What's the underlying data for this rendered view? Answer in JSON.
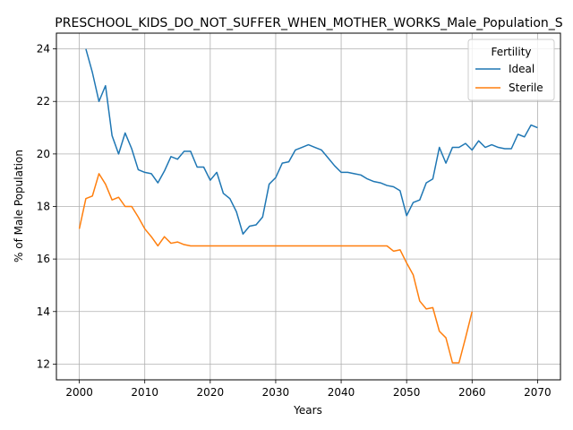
{
  "chart_data": {
    "type": "line",
    "title": "PRESCHOOL_KIDS_DO_NOT_SUFFER_WHEN_MOTHER_WORKS_Male_Population_S",
    "xlabel": "Years",
    "ylabel": "% of Male Population",
    "xlim": [
      1996.5,
      2073.5
    ],
    "ylim": [
      11.4,
      24.6
    ],
    "x_ticks": [
      2000,
      2010,
      2020,
      2030,
      2040,
      2050,
      2060,
      2070
    ],
    "y_ticks": [
      12,
      14,
      16,
      18,
      20,
      22,
      24
    ],
    "grid": true,
    "legend": {
      "title": "Fertility",
      "placement": "top-right"
    },
    "series": [
      {
        "name": "Ideal",
        "color": "#1f77b4",
        "points": [
          [
            2001,
            24.0
          ],
          [
            2002,
            23.1
          ],
          [
            2003,
            22.0
          ],
          [
            2004,
            22.6
          ],
          [
            2005,
            20.7
          ],
          [
            2006,
            20.0
          ],
          [
            2007,
            20.8
          ],
          [
            2008,
            20.2
          ],
          [
            2009,
            19.4
          ],
          [
            2010,
            19.3
          ],
          [
            2011,
            19.25
          ],
          [
            2012,
            18.9
          ],
          [
            2013,
            19.35
          ],
          [
            2014,
            19.9
          ],
          [
            2015,
            19.8
          ],
          [
            2016,
            20.1
          ],
          [
            2017,
            20.1
          ],
          [
            2018,
            19.5
          ],
          [
            2019,
            19.5
          ],
          [
            2020,
            19.0
          ],
          [
            2021,
            19.3
          ],
          [
            2022,
            18.5
          ],
          [
            2023,
            18.3
          ],
          [
            2024,
            17.8
          ],
          [
            2025,
            16.95
          ],
          [
            2026,
            17.25
          ],
          [
            2027,
            17.3
          ],
          [
            2028,
            17.6
          ],
          [
            2029,
            18.85
          ],
          [
            2030,
            19.1
          ],
          [
            2031,
            19.65
          ],
          [
            2032,
            19.7
          ],
          [
            2033,
            20.15
          ],
          [
            2034,
            20.25
          ],
          [
            2035,
            20.35
          ],
          [
            2036,
            20.25
          ],
          [
            2037,
            20.15
          ],
          [
            2038,
            19.85
          ],
          [
            2039,
            19.55
          ],
          [
            2040,
            19.3
          ],
          [
            2041,
            19.3
          ],
          [
            2042,
            19.25
          ],
          [
            2043,
            19.2
          ],
          [
            2044,
            19.05
          ],
          [
            2045,
            18.95
          ],
          [
            2046,
            18.9
          ],
          [
            2047,
            18.8
          ],
          [
            2048,
            18.75
          ],
          [
            2049,
            18.6
          ],
          [
            2050,
            17.65
          ],
          [
            2051,
            18.15
          ],
          [
            2052,
            18.25
          ],
          [
            2053,
            18.9
          ],
          [
            2054,
            19.05
          ],
          [
            2055,
            20.25
          ],
          [
            2056,
            19.65
          ],
          [
            2057,
            20.25
          ],
          [
            2058,
            20.25
          ],
          [
            2059,
            20.4
          ],
          [
            2060,
            20.15
          ],
          [
            2061,
            20.5
          ],
          [
            2062,
            20.25
          ],
          [
            2063,
            20.35
          ],
          [
            2064,
            20.25
          ],
          [
            2065,
            20.2
          ],
          [
            2066,
            20.2
          ],
          [
            2067,
            20.75
          ],
          [
            2068,
            20.65
          ],
          [
            2069,
            21.1
          ],
          [
            2070,
            21.0
          ]
        ]
      },
      {
        "name": "Sterile",
        "color": "#ff7f0e",
        "points": [
          [
            2000,
            17.15
          ],
          [
            2001,
            18.3
          ],
          [
            2002,
            18.4
          ],
          [
            2003,
            19.25
          ],
          [
            2004,
            18.85
          ],
          [
            2005,
            18.25
          ],
          [
            2006,
            18.35
          ],
          [
            2007,
            18.0
          ],
          [
            2008,
            18.0
          ],
          [
            2009,
            17.6
          ],
          [
            2010,
            17.15
          ],
          [
            2011,
            16.85
          ],
          [
            2012,
            16.5
          ],
          [
            2013,
            16.85
          ],
          [
            2014,
            16.6
          ],
          [
            2015,
            16.65
          ],
          [
            2016,
            16.55
          ],
          [
            2017,
            16.5
          ],
          [
            2018,
            16.5
          ],
          [
            2019,
            16.5
          ],
          [
            2020,
            16.5
          ],
          [
            2021,
            16.5
          ],
          [
            2022,
            16.5
          ],
          [
            2023,
            16.5
          ],
          [
            2024,
            16.5
          ],
          [
            2025,
            16.5
          ],
          [
            2026,
            16.5
          ],
          [
            2027,
            16.5
          ],
          [
            2028,
            16.5
          ],
          [
            2029,
            16.5
          ],
          [
            2030,
            16.5
          ],
          [
            2031,
            16.5
          ],
          [
            2032,
            16.5
          ],
          [
            2033,
            16.5
          ],
          [
            2034,
            16.5
          ],
          [
            2035,
            16.5
          ],
          [
            2036,
            16.5
          ],
          [
            2037,
            16.5
          ],
          [
            2038,
            16.5
          ],
          [
            2039,
            16.5
          ],
          [
            2040,
            16.5
          ],
          [
            2041,
            16.5
          ],
          [
            2042,
            16.5
          ],
          [
            2043,
            16.5
          ],
          [
            2044,
            16.5
          ],
          [
            2045,
            16.5
          ],
          [
            2046,
            16.5
          ],
          [
            2047,
            16.5
          ],
          [
            2048,
            16.3
          ],
          [
            2049,
            16.35
          ],
          [
            2050,
            15.85
          ],
          [
            2051,
            15.4
          ],
          [
            2052,
            14.4
          ],
          [
            2053,
            14.1
          ],
          [
            2054,
            14.15
          ],
          [
            2055,
            13.25
          ],
          [
            2056,
            13.0
          ],
          [
            2057,
            12.05
          ],
          [
            2058,
            12.05
          ],
          [
            2059,
            13.0
          ],
          [
            2060,
            14.0
          ]
        ]
      }
    ]
  }
}
